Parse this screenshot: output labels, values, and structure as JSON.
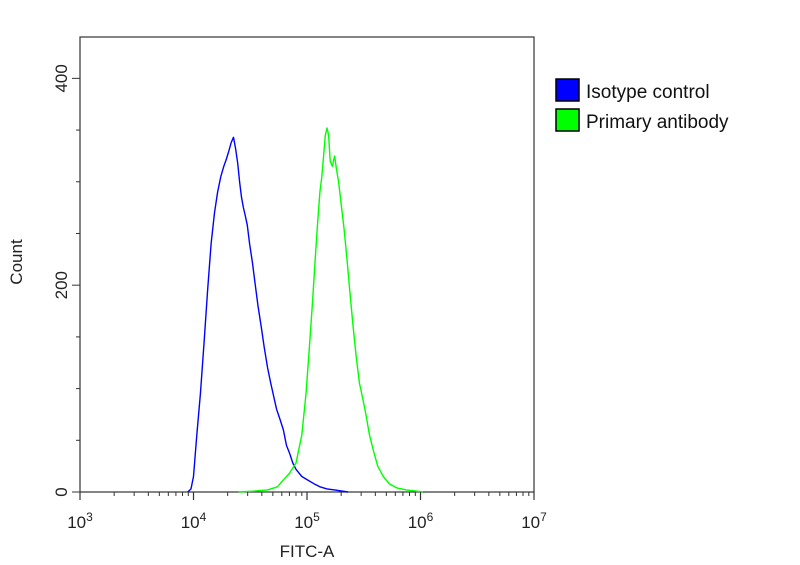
{
  "chart_data": {
    "type": "line",
    "title": "",
    "xlabel": "FITC-A",
    "ylabel": "Count",
    "x_scale": "log",
    "xlim": [
      1000,
      10000000
    ],
    "ylim": [
      0,
      440
    ],
    "x_ticks": [
      {
        "value": 1000,
        "base": "10",
        "exp": "3"
      },
      {
        "value": 10000,
        "base": "10",
        "exp": "4"
      },
      {
        "value": 100000,
        "base": "10",
        "exp": "5"
      },
      {
        "value": 1000000,
        "base": "10",
        "exp": "6"
      },
      {
        "value": 10000000,
        "base": "10",
        "exp": "7"
      }
    ],
    "y_ticks": [
      {
        "value": 0,
        "label": "0"
      },
      {
        "value": 200,
        "label": "200"
      },
      {
        "value": 400,
        "label": "400"
      }
    ],
    "grid": false,
    "legend_position": "right",
    "series": [
      {
        "name": "Isotype control",
        "color": "#0000ff",
        "points": [
          [
            8900,
            0
          ],
          [
            9500,
            3
          ],
          [
            10000,
            15
          ],
          [
            10700,
            55
          ],
          [
            11500,
            95
          ],
          [
            12400,
            145
          ],
          [
            13300,
            195
          ],
          [
            14300,
            240
          ],
          [
            15300,
            270
          ],
          [
            16300,
            290
          ],
          [
            17400,
            305
          ],
          [
            18500,
            315
          ],
          [
            19500,
            322
          ],
          [
            20500,
            330
          ],
          [
            21500,
            338
          ],
          [
            22500,
            343
          ],
          [
            23500,
            332
          ],
          [
            24500,
            318
          ],
          [
            25500,
            300
          ],
          [
            26500,
            285
          ],
          [
            27500,
            275
          ],
          [
            28500,
            268
          ],
          [
            29800,
            258
          ],
          [
            31200,
            240
          ],
          [
            33000,
            222
          ],
          [
            35000,
            200
          ],
          [
            37000,
            180
          ],
          [
            39500,
            160
          ],
          [
            42000,
            140
          ],
          [
            45000,
            120
          ],
          [
            48000,
            105
          ],
          [
            51000,
            92
          ],
          [
            54000,
            80
          ],
          [
            58000,
            70
          ],
          [
            62000,
            60
          ],
          [
            66000,
            45
          ],
          [
            70000,
            38
          ],
          [
            75000,
            28
          ],
          [
            80000,
            22
          ],
          [
            90000,
            15
          ],
          [
            100000,
            12
          ],
          [
            115000,
            8
          ],
          [
            130000,
            5
          ],
          [
            150000,
            3
          ],
          [
            175000,
            2
          ],
          [
            200000,
            1
          ],
          [
            230000,
            0
          ]
        ]
      },
      {
        "name": "Primary antibody",
        "color": "#00ff00",
        "points": [
          [
            25000,
            0
          ],
          [
            35000,
            1
          ],
          [
            45000,
            2
          ],
          [
            55000,
            5
          ],
          [
            60000,
            10
          ],
          [
            70000,
            18
          ],
          [
            80000,
            28
          ],
          [
            90000,
            55
          ],
          [
            98000,
            95
          ],
          [
            105000,
            140
          ],
          [
            112000,
            185
          ],
          [
            118000,
            225
          ],
          [
            124000,
            260
          ],
          [
            130000,
            290
          ],
          [
            135000,
            305
          ],
          [
            140000,
            325
          ],
          [
            145000,
            345
          ],
          [
            150000,
            352
          ],
          [
            155000,
            345
          ],
          [
            160000,
            320
          ],
          [
            167000,
            315
          ],
          [
            175000,
            325
          ],
          [
            182000,
            312
          ],
          [
            190000,
            300
          ],
          [
            200000,
            278
          ],
          [
            212000,
            255
          ],
          [
            225000,
            225
          ],
          [
            240000,
            190
          ],
          [
            255000,
            160
          ],
          [
            272000,
            130
          ],
          [
            290000,
            105
          ],
          [
            310000,
            90
          ],
          [
            330000,
            75
          ],
          [
            355000,
            55
          ],
          [
            385000,
            40
          ],
          [
            420000,
            25
          ],
          [
            470000,
            15
          ],
          [
            530000,
            8
          ],
          [
            620000,
            4
          ],
          [
            750000,
            2
          ],
          [
            900000,
            1
          ],
          [
            1050000,
            0
          ]
        ]
      }
    ]
  }
}
